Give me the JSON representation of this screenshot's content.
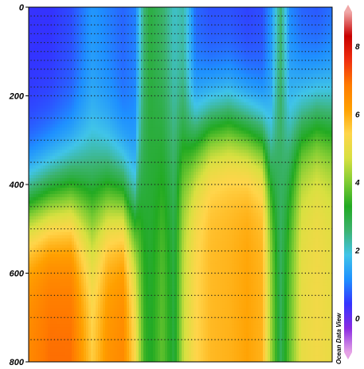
{
  "chart_data": {
    "type": "heatmap",
    "title": "",
    "xlabel": "",
    "ylabel": "",
    "y_axis": {
      "ylim": [
        0,
        800
      ],
      "ticks": [
        0,
        200,
        400,
        600,
        800
      ],
      "inverted": true
    },
    "colorbar": {
      "range": [
        -1,
        9
      ],
      "ticks": [
        0,
        2,
        4,
        6,
        8
      ]
    },
    "colormap": [
      "#e6a3e6",
      "#8a2be2",
      "#3333ff",
      "#1e90ff",
      "#40c4e8",
      "#3cb371",
      "#22aa22",
      "#7fcc33",
      "#d8e040",
      "#ffd54a",
      "#ffa000",
      "#ff7a00",
      "#f03010",
      "#c80000",
      "#f0a8a8"
    ],
    "value_profiles": [
      {
        "x": 0.0,
        "top": 0.4,
        "bottom": 6.6,
        "transition_depth": 450,
        "sharpness": 140
      },
      {
        "x": 0.07,
        "top": 0.4,
        "bottom": 7.0,
        "transition_depth": 430,
        "sharpness": 150
      },
      {
        "x": 0.14,
        "top": 0.6,
        "bottom": 7.0,
        "transition_depth": 420,
        "sharpness": 160
      },
      {
        "x": 0.21,
        "top": 1.2,
        "bottom": 5.6,
        "transition_depth": 430,
        "sharpness": 200
      },
      {
        "x": 0.26,
        "top": 1.0,
        "bottom": 6.4,
        "transition_depth": 420,
        "sharpness": 170
      },
      {
        "x": 0.31,
        "top": 0.8,
        "bottom": 6.6,
        "transition_depth": 430,
        "sharpness": 150
      },
      {
        "x": 0.35,
        "top": 1.0,
        "bottom": 5.4,
        "transition_depth": 480,
        "sharpness": 160
      },
      {
        "x": 0.38,
        "top": 2.5,
        "bottom": 3.6,
        "transition_depth": 420,
        "sharpness": 300
      },
      {
        "x": 0.4,
        "top": 3.0,
        "bottom": 3.2,
        "transition_depth": 400,
        "sharpness": 300
      },
      {
        "x": 0.44,
        "top": 2.6,
        "bottom": 3.8,
        "transition_depth": 350,
        "sharpness": 260
      },
      {
        "x": 0.48,
        "top": 2.0,
        "bottom": 3.0,
        "transition_depth": 300,
        "sharpness": 200
      },
      {
        "x": 0.51,
        "top": 2.2,
        "bottom": 4.6,
        "transition_depth": 330,
        "sharpness": 170
      },
      {
        "x": 0.55,
        "top": 0.8,
        "bottom": 5.4,
        "transition_depth": 300,
        "sharpness": 140
      },
      {
        "x": 0.6,
        "top": 0.6,
        "bottom": 5.8,
        "transition_depth": 270,
        "sharpness": 130
      },
      {
        "x": 0.66,
        "top": 0.6,
        "bottom": 5.9,
        "transition_depth": 260,
        "sharpness": 130
      },
      {
        "x": 0.72,
        "top": 0.5,
        "bottom": 6.1,
        "transition_depth": 280,
        "sharpness": 130
      },
      {
        "x": 0.77,
        "top": 0.6,
        "bottom": 5.9,
        "transition_depth": 300,
        "sharpness": 130
      },
      {
        "x": 0.8,
        "top": 1.2,
        "bottom": 4.2,
        "transition_depth": 350,
        "sharpness": 170
      },
      {
        "x": 0.83,
        "top": 2.6,
        "bottom": 2.8,
        "transition_depth": 350,
        "sharpness": 300
      },
      {
        "x": 0.86,
        "top": 1.0,
        "bottom": 3.8,
        "transition_depth": 300,
        "sharpness": 200
      },
      {
        "x": 0.9,
        "top": 0.7,
        "bottom": 5.0,
        "transition_depth": 270,
        "sharpness": 160
      },
      {
        "x": 0.95,
        "top": 0.6,
        "bottom": 5.2,
        "transition_depth": 250,
        "sharpness": 150
      },
      {
        "x": 1.0,
        "top": 0.8,
        "bottom": 5.0,
        "transition_depth": 260,
        "sharpness": 160
      }
    ],
    "sample_depths": [
      20,
      40,
      60,
      80,
      100,
      120,
      140,
      160,
      180,
      200,
      250,
      300,
      350,
      400,
      450,
      500,
      550,
      600,
      650,
      700,
      750
    ]
  },
  "watermark": "Ocean Data View"
}
